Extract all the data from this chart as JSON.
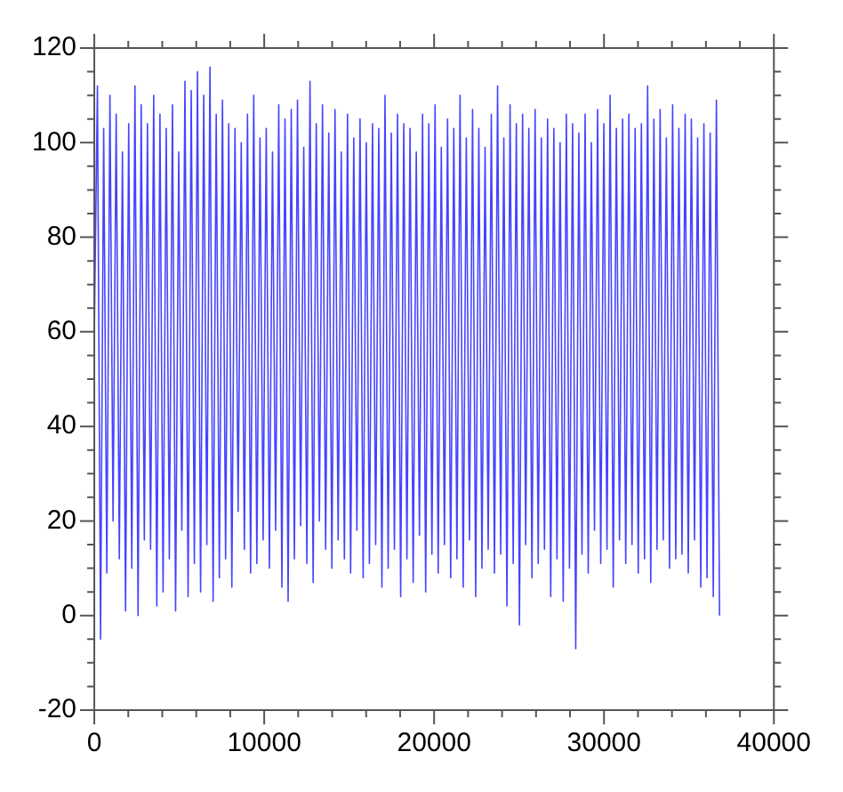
{
  "chart_data": {
    "type": "line",
    "marker": "none",
    "legend": false,
    "xlim": [
      0,
      40000
    ],
    "xticks": [
      0,
      {
        "value": 2000,
        "label": null
      },
      {
        "value": 4000,
        "label": null
      },
      {
        "value": 6000,
        "label": null
      },
      {
        "value": 8000,
        "label": null
      },
      10000,
      {
        "value": 12000,
        "label": null
      },
      {
        "value": 14000,
        "label": null
      },
      {
        "value": 16000,
        "label": null
      },
      {
        "value": 18000,
        "label": null
      },
      20000,
      {
        "value": 22000,
        "label": null
      },
      {
        "value": 24000,
        "label": null
      },
      {
        "value": 26000,
        "label": null
      },
      {
        "value": 28000,
        "label": null
      },
      30000,
      {
        "value": 32000,
        "label": null
      },
      {
        "value": 34000,
        "label": null
      },
      {
        "value": 36000,
        "label": null
      },
      {
        "value": 38000,
        "label": null
      },
      40000
    ],
    "ylim": [
      -20,
      120
    ],
    "yticks": [
      -20,
      {
        "value": -15,
        "label": null
      },
      {
        "value": -10,
        "label": null
      },
      {
        "value": -5,
        "label": null
      },
      0,
      {
        "value": 5,
        "label": null
      },
      {
        "value": 10,
        "label": null
      },
      {
        "value": 15,
        "label": null
      },
      20,
      {
        "value": 25,
        "label": null
      },
      {
        "value": 30,
        "label": null
      },
      {
        "value": 35,
        "label": null
      },
      40,
      {
        "value": 45,
        "label": null
      },
      {
        "value": 50,
        "label": null
      },
      {
        "value": 55,
        "label": null
      },
      60,
      {
        "value": 65,
        "label": null
      },
      {
        "value": 70,
        "label": null
      },
      {
        "value": 75,
        "label": null
      },
      80,
      {
        "value": 85,
        "label": null
      },
      {
        "value": 90,
        "label": null
      },
      {
        "value": 95,
        "label": null
      },
      100,
      {
        "value": 105,
        "label": null
      },
      {
        "value": 110,
        "label": null
      },
      {
        "value": 115,
        "label": null
      },
      120
    ],
    "series": [
      {
        "color": "#0000ff",
        "x": [
          0,
          184,
          368,
          552,
          736,
          920,
          1104,
          1288,
          1472,
          1656,
          1840,
          2024,
          2208,
          2392,
          2576,
          2760,
          2944,
          3128,
          3312,
          3496,
          3680,
          3864,
          4048,
          4232,
          4416,
          4600,
          4784,
          4968,
          5152,
          5336,
          5520,
          5704,
          5888,
          6072,
          6256,
          6440,
          6624,
          6808,
          6992,
          7176,
          7360,
          7544,
          7728,
          7912,
          8096,
          8280,
          8464,
          8648,
          8832,
          9016,
          9200,
          9384,
          9568,
          9752,
          9936,
          10120,
          10304,
          10488,
          10672,
          10856,
          11040,
          11224,
          11408,
          11592,
          11776,
          11960,
          12144,
          12328,
          12512,
          12696,
          12880,
          13064,
          13248,
          13432,
          13616,
          13800,
          13984,
          14168,
          14352,
          14536,
          14720,
          14904,
          15088,
          15272,
          15456,
          15640,
          15824,
          16008,
          16192,
          16376,
          16560,
          16744,
          16928,
          17112,
          17296,
          17480,
          17664,
          17848,
          18032,
          18216,
          18400,
          18584,
          18768,
          18952,
          19136,
          19320,
          19504,
          19688,
          19872,
          20056,
          20240,
          20424,
          20608,
          20792,
          20976,
          21160,
          21344,
          21528,
          21712,
          21896,
          22080,
          22264,
          22448,
          22632,
          22816,
          23000,
          23184,
          23368,
          23552,
          23736,
          23920,
          24104,
          24288,
          24472,
          24656,
          24840,
          25024,
          25208,
          25392,
          25576,
          25760,
          25944,
          26128,
          26312,
          26496,
          26680,
          26864,
          27048,
          27232,
          27416,
          27600,
          27784,
          27968,
          28152,
          28336,
          28520,
          28704,
          28888,
          29072,
          29256,
          29440,
          29624,
          29808,
          29992,
          30176,
          30360,
          30544,
          30728,
          30912,
          31096,
          31280,
          31464,
          31648,
          31832,
          32016,
          32200,
          32384,
          32568,
          32752,
          32936,
          33120,
          33304,
          33488,
          33672,
          33856,
          34040,
          34224,
          34408,
          34592,
          34776,
          34960,
          35144,
          35328,
          35512,
          35696,
          35880,
          36064,
          36248,
          36432,
          36616,
          36800
        ],
        "values": [
          60,
          112,
          -5,
          103,
          9,
          110,
          20,
          106,
          12,
          98,
          1,
          104,
          10,
          112,
          0,
          108,
          16,
          104,
          14,
          110,
          2,
          106,
          5,
          103,
          12,
          108,
          1,
          98,
          18,
          113,
          4,
          111,
          11,
          115,
          5,
          110,
          15,
          116,
          3,
          106,
          8,
          109,
          12,
          104,
          6,
          103,
          22,
          100,
          14,
          106,
          9,
          110,
          11,
          101,
          16,
          103,
          10,
          98,
          18,
          108,
          6,
          105,
          3,
          107,
          12,
          109,
          19,
          99,
          11,
          113,
          7,
          104,
          20,
          108,
          14,
          102,
          10,
          107,
          16,
          98,
          12,
          106,
          9,
          101,
          18,
          105,
          8,
          100,
          11,
          104,
          15,
          103,
          6,
          110,
          10,
          102,
          14,
          106,
          4,
          104,
          12,
          103,
          7,
          98,
          17,
          106,
          5,
          104,
          13,
          108,
          9,
          99,
          15,
          105,
          8,
          103,
          12,
          110,
          6,
          101,
          16,
          107,
          4,
          103,
          10,
          99,
          14,
          106,
          9,
          112,
          13,
          101,
          2,
          108,
          11,
          104,
          -2,
          106,
          15,
          103,
          8,
          107,
          11,
          101,
          14,
          105,
          4,
          103,
          12,
          100,
          3,
          106,
          10,
          104,
          -7,
          102,
          13,
          106,
          9,
          100,
          18,
          107,
          11,
          104,
          14,
          110,
          6,
          103,
          16,
          105,
          11,
          106,
          15,
          103,
          9,
          104,
          12,
          112,
          7,
          105,
          14,
          107,
          16,
          101,
          10,
          108,
          12,
          103,
          13,
          106,
          9,
          105,
          16,
          101,
          6,
          104,
          8,
          102,
          4,
          109,
          0
        ]
      }
    ]
  }
}
